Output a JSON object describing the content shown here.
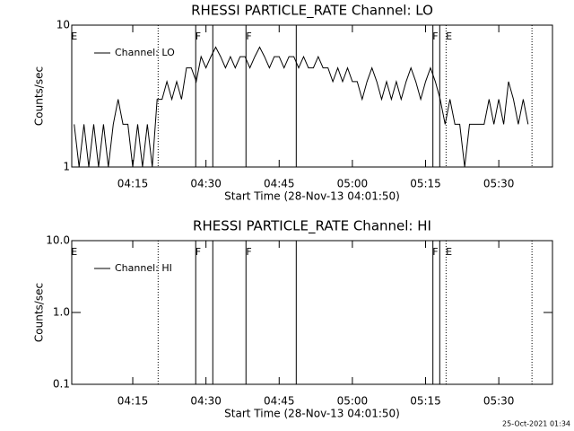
{
  "chart_data": [
    {
      "type": "line",
      "title": "RHESSI PARTICLE_RATE Channel: LO",
      "xlabel": "Start Time (28-Nov-13 04:01:50)",
      "ylabel": "Counts/sec",
      "log_y": true,
      "xlim": [
        2.5,
        101
      ],
      "ylim": [
        1,
        10
      ],
      "xticks": [
        {
          "value": 15,
          "label": "04:15"
        },
        {
          "value": 30,
          "label": "04:30"
        },
        {
          "value": 45,
          "label": "04:45"
        },
        {
          "value": 60,
          "label": "05:00"
        },
        {
          "value": 75,
          "label": "05:15"
        },
        {
          "value": 90,
          "label": "05:30"
        }
      ],
      "yticks": [
        1,
        10
      ],
      "legend": "upper left",
      "series": [
        {
          "name": "Channel: LO",
          "color": "#000000",
          "x": [
            3,
            4,
            5,
            6,
            7,
            8,
            9,
            10,
            11,
            12,
            13,
            14,
            15,
            16,
            17,
            18,
            19,
            20,
            21,
            22,
            23,
            24,
            25,
            26,
            27,
            28,
            29,
            30,
            31,
            32,
            33,
            34,
            35,
            36,
            37,
            38,
            39,
            40,
            41,
            42,
            43,
            44,
            45,
            46,
            47,
            48,
            49,
            50,
            51,
            52,
            53,
            54,
            55,
            56,
            57,
            58,
            59,
            60,
            61,
            62,
            63,
            64,
            65,
            66,
            67,
            68,
            69,
            70,
            71,
            72,
            73,
            74,
            75,
            76,
            77,
            78,
            79,
            80,
            81,
            82,
            83,
            84,
            85,
            86,
            87,
            88,
            89,
            90,
            91,
            92,
            93,
            94,
            95,
            96
          ],
          "values": [
            2,
            1,
            2,
            1,
            2,
            1,
            2,
            1,
            2,
            3,
            2,
            2,
            1,
            2,
            1,
            2,
            1,
            3,
            3,
            4,
            3,
            4,
            3,
            5,
            5,
            4,
            6,
            5,
            6,
            7,
            6,
            5,
            6,
            5,
            6,
            6,
            5,
            6,
            7,
            6,
            5,
            6,
            6,
            5,
            6,
            6,
            5,
            6,
            5,
            5,
            6,
            5,
            5,
            4,
            5,
            4,
            5,
            4,
            4,
            3,
            4,
            5,
            4,
            3,
            4,
            3,
            4,
            3,
            4,
            5,
            4,
            3,
            4,
            5,
            4,
            3,
            2,
            3,
            2,
            2,
            1,
            2,
            2,
            2,
            2,
            3,
            2,
            3,
            2,
            4,
            3,
            2,
            3,
            2
          ]
        }
      ],
      "markers": [
        {
          "x": 20.2,
          "style": "dotted"
        },
        {
          "x": 27.9,
          "style": "solid"
        },
        {
          "x": 31.4,
          "style": "solid"
        },
        {
          "x": 38.2,
          "style": "solid"
        },
        {
          "x": 48.5,
          "style": "solid"
        },
        {
          "x": 76.5,
          "style": "solid"
        },
        {
          "x": 77.9,
          "style": "solid"
        },
        {
          "x": 79.2,
          "style": "dotted"
        },
        {
          "x": 96.8,
          "style": "dotted"
        }
      ],
      "annotations": [
        {
          "text": "E",
          "x": 3
        },
        {
          "text": "F",
          "x": 28.4
        },
        {
          "text": "F",
          "x": 38.8
        },
        {
          "text": "F",
          "x": 77
        },
        {
          "text": "E",
          "x": 79.8
        }
      ]
    },
    {
      "type": "line",
      "title": "RHESSI PARTICLE_RATE Channel: HI",
      "xlabel": "Start Time (28-Nov-13 04:01:50)",
      "ylabel": "Counts/sec",
      "log_y": true,
      "xlim": [
        2.5,
        101
      ],
      "ylim": [
        0.1,
        10
      ],
      "xticks": [
        {
          "value": 15,
          "label": "04:15"
        },
        {
          "value": 30,
          "label": "04:30"
        },
        {
          "value": 45,
          "label": "04:45"
        },
        {
          "value": 60,
          "label": "05:00"
        },
        {
          "value": 75,
          "label": "05:15"
        },
        {
          "value": 90,
          "label": "05:30"
        }
      ],
      "yticks": [
        0.1,
        {
          "value": 1,
          "label": "1.0"
        },
        {
          "value": 10,
          "label": "10.0"
        }
      ],
      "legend": "upper left",
      "series": [
        {
          "name": "Channel: HI",
          "color": "#000000",
          "x": [],
          "values": []
        }
      ],
      "markers": [
        {
          "x": 20.2,
          "style": "dotted"
        },
        {
          "x": 27.9,
          "style": "solid"
        },
        {
          "x": 31.4,
          "style": "solid"
        },
        {
          "x": 38.2,
          "style": "solid"
        },
        {
          "x": 48.5,
          "style": "solid"
        },
        {
          "x": 76.5,
          "style": "solid"
        },
        {
          "x": 77.9,
          "style": "solid"
        },
        {
          "x": 79.2,
          "style": "dotted"
        },
        {
          "x": 96.8,
          "style": "dotted"
        }
      ],
      "annotations": [
        {
          "text": "E",
          "x": 3
        },
        {
          "text": "F",
          "x": 28.4
        },
        {
          "text": "F",
          "x": 38.8
        },
        {
          "text": "F",
          "x": 77
        },
        {
          "text": "E",
          "x": 79.8
        }
      ]
    }
  ],
  "footer": "25-Oct-2021 01:34"
}
